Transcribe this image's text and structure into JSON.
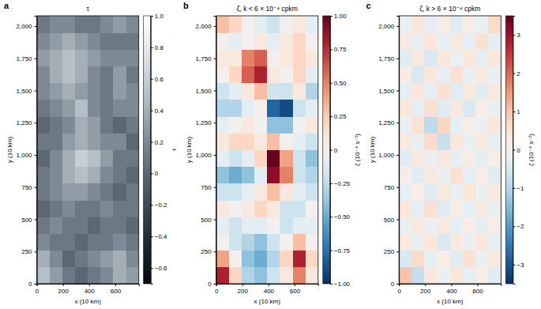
{
  "chart_data": [
    {
      "type": "heatmap",
      "label": "a",
      "title": "τ",
      "x_label": "x (10 km)",
      "y_label": "y (10 km)",
      "xlim": [
        0,
        780
      ],
      "ylim": [
        0,
        2080
      ],
      "xticks": [
        0,
        200,
        400,
        600
      ],
      "yticks": [
        0,
        250,
        500,
        750,
        {
          "value": 1000,
          "label": "1,000"
        },
        {
          "value": 1250,
          "label": "1,250"
        },
        {
          "value": 1500,
          "label": "1,500"
        },
        {
          "value": 1750,
          "label": "1,750"
        },
        {
          "value": 2000,
          "label": "2,000"
        }
      ],
      "x_edges": [
        0,
        97.5,
        195,
        292.5,
        390,
        487.5,
        585,
        682.5,
        780
      ],
      "y_edges": [
        0,
        130,
        260,
        390,
        520,
        650,
        780,
        910,
        1040,
        1170,
        1300,
        1430,
        1560,
        1690,
        1820,
        1950,
        2080
      ],
      "values": [
        [
          0.5,
          0.3,
          0.1,
          0.0,
          0.1,
          0.2,
          0.4,
          0.3
        ],
        [
          0.4,
          0.2,
          0.0,
          0.1,
          0.2,
          0.3,
          0.4,
          0.2
        ],
        [
          0.2,
          0.1,
          0.1,
          0.0,
          0.1,
          0.1,
          0.2,
          0.1
        ],
        [
          0.1,
          0.2,
          0.1,
          0.1,
          0.0,
          0.1,
          0.1,
          0.0
        ],
        [
          0.0,
          0.1,
          0.2,
          0.1,
          0.1,
          0.2,
          0.1,
          0.1
        ],
        [
          0.1,
          0.2,
          0.3,
          0.3,
          0.2,
          0.1,
          0.0,
          0.1
        ],
        [
          0.1,
          0.2,
          0.4,
          0.5,
          0.4,
          0.2,
          0.1,
          0.0
        ],
        [
          0.0,
          0.2,
          0.4,
          0.6,
          0.5,
          0.3,
          0.1,
          0.1
        ],
        [
          0.1,
          0.1,
          0.3,
          0.4,
          0.3,
          0.2,
          0.2,
          0.0
        ],
        [
          0.0,
          0.1,
          0.2,
          0.4,
          0.3,
          0.1,
          0.0,
          0.1
        ],
        [
          0.1,
          0.2,
          0.3,
          0.5,
          0.2,
          0.1,
          0.2,
          0.2
        ],
        [
          0.2,
          0.3,
          0.4,
          0.3,
          0.2,
          0.1,
          0.3,
          0.2
        ],
        [
          0.2,
          0.4,
          0.5,
          0.4,
          0.2,
          0.1,
          0.3,
          0.1
        ],
        [
          0.3,
          0.4,
          0.5,
          0.4,
          0.3,
          0.2,
          0.2,
          0.2
        ],
        [
          0.2,
          0.3,
          0.4,
          0.3,
          0.2,
          0.1,
          0.1,
          0.1
        ],
        [
          0.1,
          0.2,
          0.2,
          0.1,
          0.1,
          0.2,
          0.3,
          0.2
        ]
      ],
      "colorbar": {
        "label": "τ",
        "lim": [
          -0.7,
          1.0
        ],
        "ticks": [
          {
            "value": -0.6,
            "label": "−0.6"
          },
          {
            "value": -0.4,
            "label": "−0.4"
          },
          {
            "value": -0.2,
            "label": "−0.2"
          },
          0,
          0.2,
          0.4,
          0.6,
          0.8,
          {
            "value": 1.0,
            "label": "1.0"
          }
        ]
      }
    },
    {
      "type": "heatmap",
      "label": "b",
      "title": "ζ, k < 6 × 10⁻⁴ cpkm",
      "x_label": "x (10 km)",
      "y_label": "y (10 km)",
      "xlim": [
        0,
        780
      ],
      "ylim": [
        0,
        2080
      ],
      "xticks": [
        0,
        200,
        400,
        600
      ],
      "yticks": [
        0,
        250,
        500,
        750,
        {
          "value": 1000,
          "label": "1,000"
        },
        {
          "value": 1250,
          "label": "1,250"
        },
        {
          "value": 1500,
          "label": "1,500"
        },
        {
          "value": 1750,
          "label": "1,750"
        },
        {
          "value": 2000,
          "label": "2,000"
        }
      ],
      "x_edges": [
        0,
        97.5,
        195,
        292.5,
        390,
        487.5,
        585,
        682.5,
        780
      ],
      "y_edges": [
        0,
        130,
        260,
        390,
        520,
        650,
        780,
        910,
        1040,
        1170,
        1300,
        1430,
        1560,
        1690,
        1820,
        1950,
        2080
      ],
      "values": [
        [
          0.8,
          0.2,
          -0.3,
          -0.4,
          -0.2,
          0.1,
          0.5,
          0.1
        ],
        [
          0.4,
          0.0,
          -0.4,
          -0.5,
          -0.3,
          0.2,
          0.8,
          0.2
        ],
        [
          0.0,
          -0.2,
          -0.3,
          -0.4,
          -0.2,
          0.0,
          0.3,
          0.0
        ],
        [
          -0.1,
          -0.2,
          -0.1,
          -0.1,
          0.0,
          -0.2,
          -0.1,
          -0.1
        ],
        [
          0.1,
          0.0,
          0.1,
          0.2,
          0.1,
          -0.2,
          -0.2,
          0.0
        ],
        [
          -0.2,
          -0.2,
          -0.1,
          0.1,
          0.3,
          0.1,
          -0.1,
          -0.2
        ],
        [
          -0.4,
          -0.5,
          -0.4,
          -0.1,
          0.9,
          0.5,
          -0.2,
          -0.3
        ],
        [
          -0.1,
          -0.2,
          -0.1,
          0.2,
          1.0,
          0.4,
          -0.2,
          -0.4
        ],
        [
          0.1,
          0.2,
          0.2,
          0.1,
          0.3,
          0.0,
          -0.1,
          -0.2
        ],
        [
          -0.1,
          0.0,
          0.1,
          0.0,
          -0.4,
          -0.4,
          0.0,
          0.1
        ],
        [
          -0.3,
          -0.3,
          -0.1,
          0.0,
          -0.8,
          -0.9,
          -0.2,
          -0.1
        ],
        [
          -0.2,
          -0.1,
          0.1,
          0.3,
          -0.2,
          -0.2,
          0.1,
          -0.3
        ],
        [
          0.0,
          0.2,
          0.6,
          0.8,
          0.1,
          0.0,
          0.2,
          -0.1
        ],
        [
          0.1,
          0.1,
          0.5,
          0.6,
          0.0,
          0.1,
          0.2,
          0.1
        ],
        [
          0.0,
          -0.1,
          0.0,
          0.1,
          -0.1,
          0.1,
          0.2,
          0.0
        ],
        [
          0.3,
          0.2,
          0.0,
          -0.1,
          -0.2,
          0.0,
          0.1,
          -0.1
        ]
      ],
      "colorbar": {
        "label": "ζ (10⁻⁴ s⁻¹)",
        "lim": [
          -1,
          1
        ],
        "ticks": [
          {
            "value": -1,
            "label": "−1.00"
          },
          {
            "value": -0.75,
            "label": "−0.75"
          },
          {
            "value": -0.5,
            "label": "−0.50"
          },
          {
            "value": -0.25,
            "label": "−0.25"
          },
          0,
          0.25,
          {
            "value": 0.5,
            "label": "0.50"
          },
          0.75,
          {
            "value": 1,
            "label": "1.00"
          }
        ]
      }
    },
    {
      "type": "heatmap",
      "label": "c",
      "title": "ζ, k > 6 × 10⁻⁴ cpkm",
      "x_label": "x (10 km)",
      "y_label": "y (10 km)",
      "xlim": [
        0,
        780
      ],
      "ylim": [
        0,
        2080
      ],
      "xticks": [
        0,
        200,
        400,
        600
      ],
      "yticks": [
        0,
        250,
        500,
        750,
        {
          "value": 1000,
          "label": "1,000"
        },
        {
          "value": 1250,
          "label": "1,250"
        },
        {
          "value": 1500,
          "label": "1,500"
        },
        {
          "value": 1750,
          "label": "1,750"
        },
        {
          "value": 2000,
          "label": "2,000"
        }
      ],
      "x_edges": [
        0,
        97.5,
        195,
        292.5,
        390,
        487.5,
        585,
        682.5,
        780
      ],
      "y_edges": [
        0,
        130,
        260,
        390,
        520,
        650,
        780,
        910,
        1040,
        1170,
        1300,
        1430,
        1560,
        1690,
        1820,
        1950,
        2080
      ],
      "values": [
        [
          1.0,
          -0.8,
          0.3,
          -0.2,
          0.4,
          -0.3,
          0.2,
          -0.4
        ],
        [
          -0.5,
          0.6,
          -0.3,
          0.2,
          -0.4,
          0.5,
          -0.2,
          0.3
        ],
        [
          0.3,
          -0.2,
          0.4,
          -0.5,
          0.3,
          -0.2,
          0.4,
          -0.3
        ],
        [
          -0.2,
          0.3,
          -0.2,
          0.3,
          -0.3,
          0.2,
          -0.3,
          0.2
        ],
        [
          0.4,
          -0.3,
          0.5,
          -0.4,
          0.2,
          -0.3,
          0.3,
          -0.2
        ],
        [
          -0.3,
          0.2,
          -0.4,
          0.3,
          -0.2,
          0.4,
          -0.2,
          0.3
        ],
        [
          0.2,
          -0.4,
          0.3,
          -0.2,
          0.5,
          -0.3,
          0.2,
          -0.4
        ],
        [
          -0.4,
          0.3,
          -0.2,
          0.4,
          -0.3,
          0.2,
          -0.3,
          0.2
        ],
        [
          0.3,
          -0.2,
          0.6,
          -0.8,
          0.4,
          -0.2,
          0.3,
          -0.3
        ],
        [
          -0.2,
          0.5,
          -0.9,
          0.7,
          -0.3,
          0.2,
          -0.2,
          0.4
        ],
        [
          0.4,
          -0.3,
          0.5,
          -0.4,
          0.3,
          -0.5,
          0.2,
          -0.2
        ],
        [
          -0.3,
          0.4,
          -0.3,
          0.5,
          -0.4,
          0.3,
          -0.4,
          0.3
        ],
        [
          0.2,
          -0.5,
          0.4,
          -0.3,
          0.5,
          -0.2,
          0.3,
          -0.2
        ],
        [
          -0.4,
          0.3,
          -0.5,
          0.4,
          -0.2,
          0.4,
          -0.3,
          0.4
        ],
        [
          0.3,
          -0.2,
          0.4,
          -0.3,
          0.3,
          -0.3,
          0.5,
          -0.3
        ],
        [
          -0.2,
          0.4,
          -0.3,
          0.2,
          -0.4,
          0.2,
          -0.2,
          0.6
        ]
      ],
      "colorbar": {
        "label": "ζ (10⁻⁴ s⁻¹)",
        "lim": [
          -3.5,
          3.5
        ],
        "ticks": [
          {
            "value": -3,
            "label": "−3"
          },
          {
            "value": -2,
            "label": "−2"
          },
          {
            "value": -1,
            "label": "−1"
          },
          0,
          1,
          2,
          3
        ]
      }
    }
  ]
}
